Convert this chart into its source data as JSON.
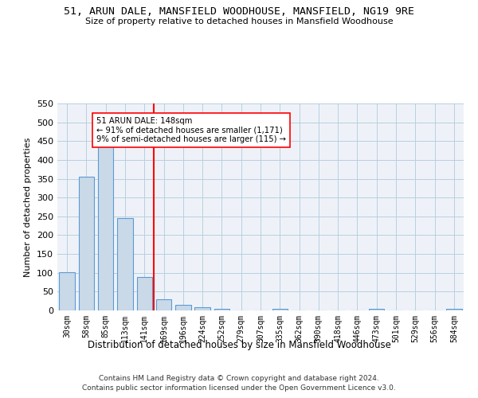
{
  "title": "51, ARUN DALE, MANSFIELD WOODHOUSE, MANSFIELD, NG19 9RE",
  "subtitle": "Size of property relative to detached houses in Mansfield Woodhouse",
  "xlabel": "Distribution of detached houses by size in Mansfield Woodhouse",
  "ylabel": "Number of detached properties",
  "categories": [
    "30sqm",
    "58sqm",
    "85sqm",
    "113sqm",
    "141sqm",
    "169sqm",
    "196sqm",
    "224sqm",
    "252sqm",
    "279sqm",
    "307sqm",
    "335sqm",
    "362sqm",
    "390sqm",
    "418sqm",
    "446sqm",
    "473sqm",
    "501sqm",
    "529sqm",
    "556sqm",
    "584sqm"
  ],
  "values": [
    102,
    356,
    446,
    246,
    88,
    30,
    14,
    9,
    5,
    0,
    0,
    5,
    0,
    0,
    0,
    0,
    5,
    0,
    0,
    0,
    5
  ],
  "bar_color": "#c9d9e8",
  "bar_edge_color": "#5b9bd5",
  "bar_width": 0.8,
  "property_label": "51 ARUN DALE: 148sqm",
  "annotation_line1": "← 91% of detached houses are smaller (1,171)",
  "annotation_line2": "9% of semi-detached houses are larger (115) →",
  "vline_position": 4.5,
  "vline_color": "red",
  "annotation_box_color": "white",
  "annotation_box_edge": "red",
  "grid_color": "#b8cfe0",
  "background_color": "#eef2f8",
  "ylim": [
    0,
    550
  ],
  "yticks": [
    0,
    50,
    100,
    150,
    200,
    250,
    300,
    350,
    400,
    450,
    500,
    550
  ],
  "footer_line1": "Contains HM Land Registry data © Crown copyright and database right 2024.",
  "footer_line2": "Contains public sector information licensed under the Open Government Licence v3.0."
}
